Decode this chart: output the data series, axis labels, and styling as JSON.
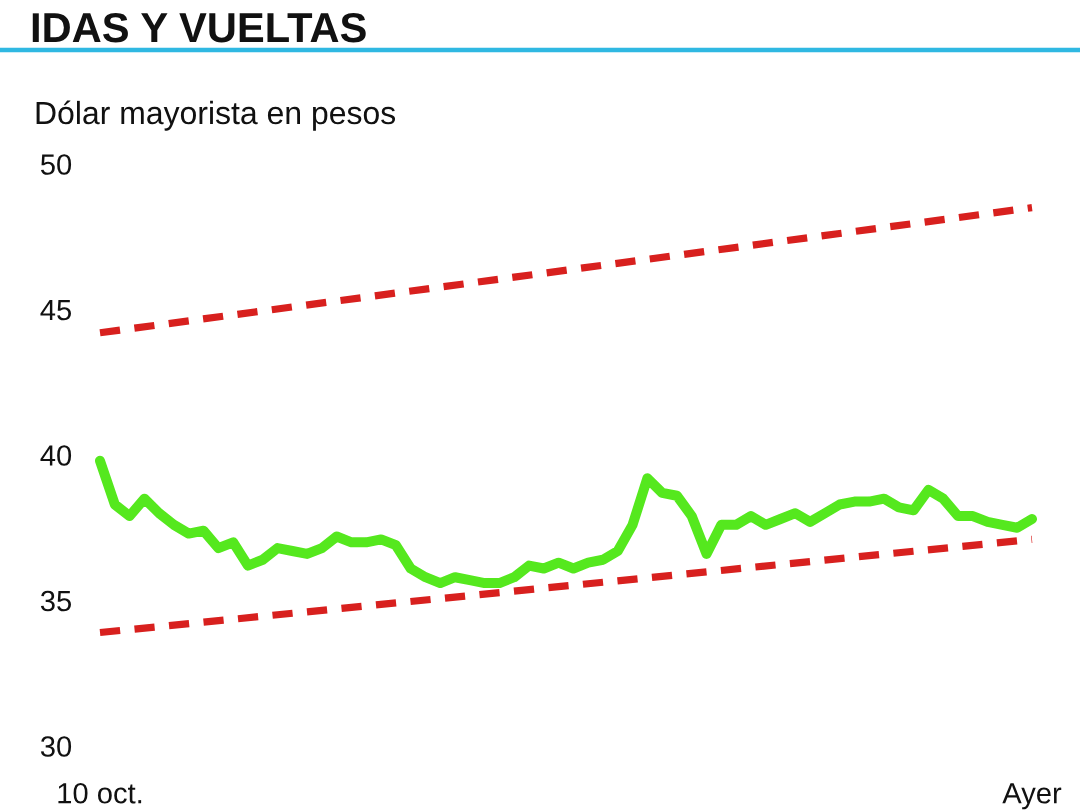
{
  "chart_data": {
    "type": "line",
    "title": "IDAS Y VUELTAS",
    "ylabel": "Dólar mayorista en pesos",
    "categories": [
      "10 oct.",
      null,
      null,
      null,
      null,
      null,
      null,
      null,
      null,
      null,
      null,
      null,
      null,
      null,
      null,
      null,
      null,
      null,
      null,
      null,
      null,
      null,
      null,
      null,
      null,
      null,
      null,
      null,
      null,
      null,
      null,
      null,
      null,
      null,
      null,
      null,
      null,
      null,
      null,
      null,
      null,
      null,
      null,
      null,
      null,
      null,
      null,
      null,
      null,
      null,
      null,
      null,
      null,
      null,
      null,
      null,
      null,
      null,
      null,
      null,
      null,
      null,
      null,
      "Ayer"
    ],
    "ylim": [
      30,
      50
    ],
    "yticks": [
      30,
      35,
      40,
      45,
      50
    ],
    "grid": false,
    "marker": "none",
    "line_style": "solid",
    "series": [
      {
        "color": "#55e81e",
        "values": [
          39.8,
          38.3,
          37.9,
          38.5,
          38.0,
          37.6,
          37.3,
          37.4,
          36.8,
          37.0,
          36.2,
          36.4,
          36.8,
          36.7,
          36.6,
          36.8,
          37.2,
          37.0,
          37.0,
          37.1,
          36.9,
          36.1,
          35.8,
          35.6,
          35.8,
          35.7,
          35.6,
          35.6,
          35.8,
          36.2,
          36.1,
          36.3,
          36.1,
          36.3,
          36.4,
          36.7,
          37.6,
          39.2,
          38.7,
          38.6,
          37.9,
          36.6,
          37.6,
          37.6,
          37.9,
          37.6,
          37.8,
          38.0,
          37.7,
          38.0,
          38.3,
          38.4,
          38.4,
          38.5,
          38.2,
          38.1,
          38.8,
          38.5,
          37.9,
          37.9,
          37.7,
          37.6,
          37.5,
          37.8
        ]
      },
      {
        "type": "line",
        "x": [
          "10 oct.",
          "Ayer"
        ],
        "values": [
          44.2,
          48.5
        ],
        "color": "#d8201e",
        "line_style": "dashed"
      },
      {
        "type": "line",
        "x": [
          "10 oct.",
          "Ayer"
        ],
        "values": [
          33.9,
          37.1
        ],
        "color": "#d8201e",
        "line_style": "dashed"
      }
    ]
  }
}
